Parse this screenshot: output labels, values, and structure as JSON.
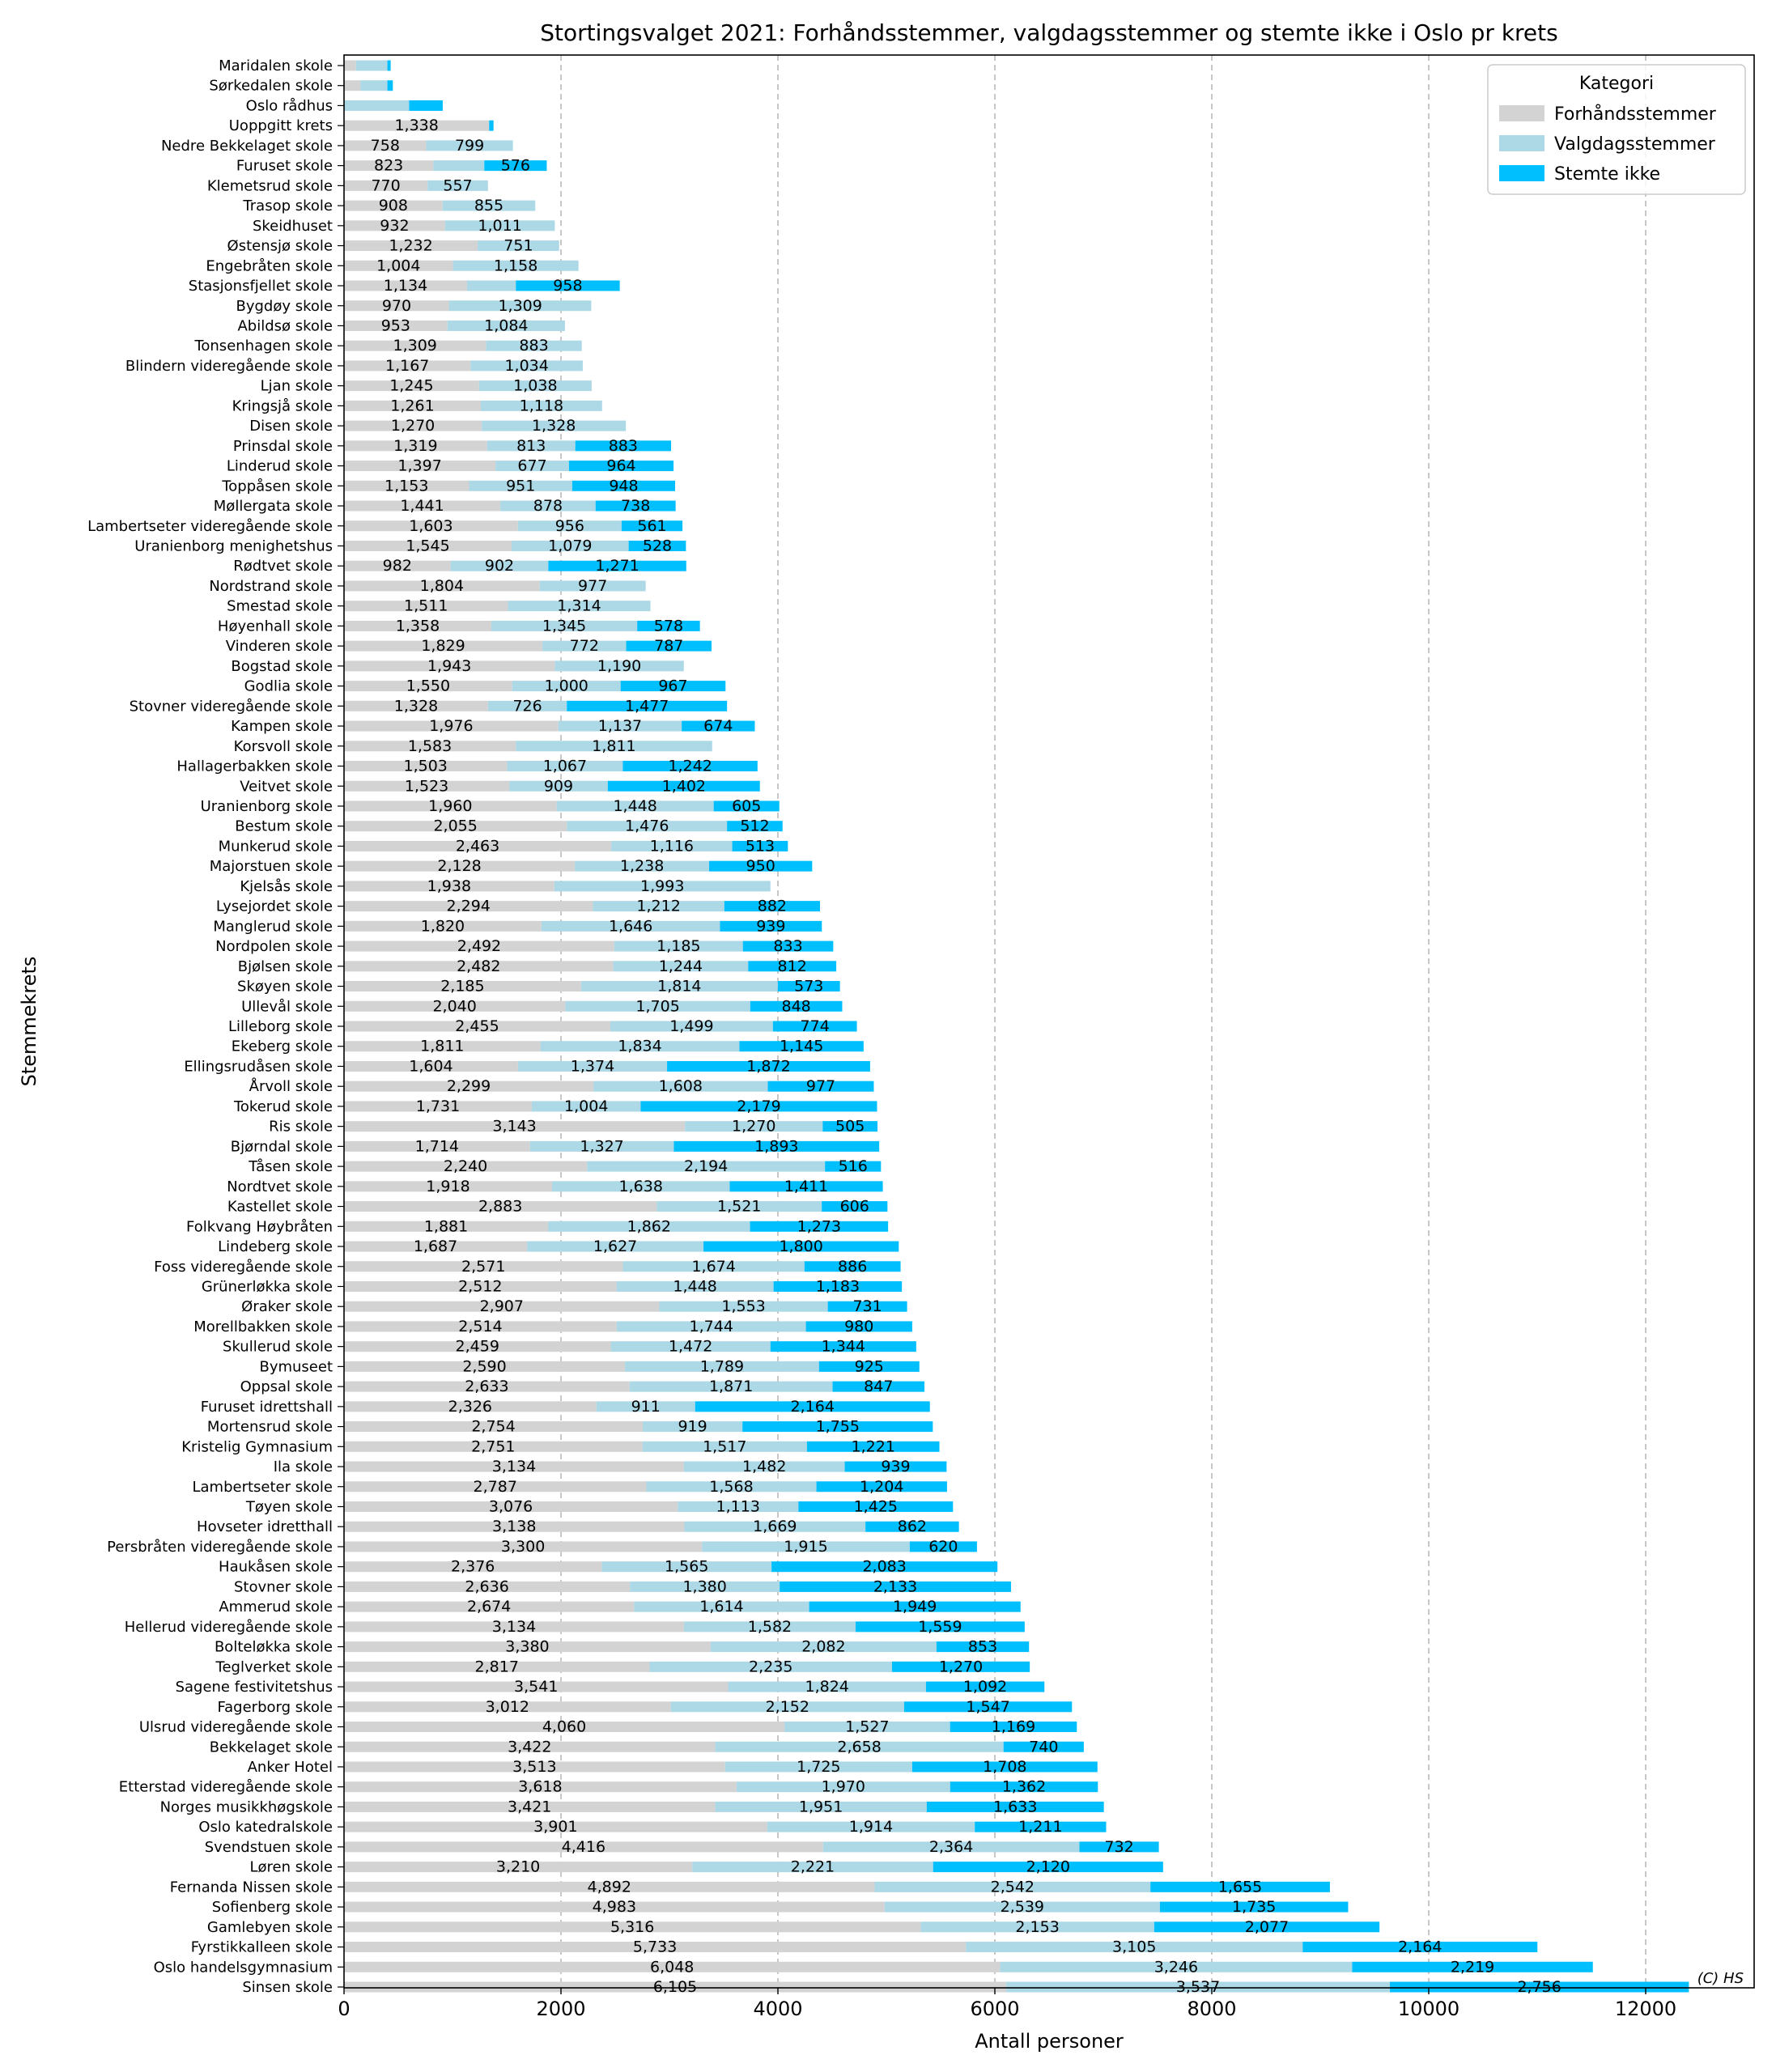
{
  "chart_data": {
    "type": "bar",
    "orientation": "horizontal",
    "stacked": true,
    "title": "Stortingsvalget 2021: Forhåndsstemmer, valgdagsstemmer og stemte ikke i Oslo pr krets",
    "xlabel": "Antall personer",
    "ylabel": "Stemmekrets",
    "xlim": [
      0,
      13000
    ],
    "xticks": [
      0,
      2000,
      4000,
      6000,
      8000,
      10000,
      12000
    ],
    "grid": "x dashed",
    "legend": {
      "title": "Kategori",
      "position": "top-right"
    },
    "credit": "(C) HS",
    "colors": [
      "#d3d3d3",
      "#add8e6",
      "#00bfff"
    ],
    "series": [
      {
        "name": "Forhåndsstemmer",
        "color": "#d3d3d3",
        "values": [
          null,
          null,
          null,
          1338,
          758,
          823,
          770,
          908,
          932,
          1232,
          1004,
          1134,
          970,
          953,
          1309,
          1167,
          1245,
          1261,
          1270,
          1319,
          1397,
          1153,
          1441,
          1603,
          1545,
          982,
          1804,
          1511,
          1358,
          1829,
          1943,
          1550,
          1328,
          1976,
          1583,
          1503,
          1523,
          1960,
          2055,
          2463,
          2128,
          1938,
          2294,
          1820,
          2492,
          2482,
          2185,
          2040,
          2455,
          1811,
          1604,
          2299,
          1731,
          3143,
          1714,
          2240,
          1918,
          2883,
          1881,
          1687,
          2571,
          2512,
          2907,
          2514,
          2459,
          2590,
          2633,
          2326,
          2754,
          2751,
          3134,
          2787,
          3076,
          3138,
          3300,
          2376,
          2636,
          2674,
          3134,
          3380,
          2817,
          3541,
          3012,
          4060,
          3422,
          3513,
          3618,
          3421,
          3901,
          4416,
          3210,
          4892,
          4983,
          5316,
          5733,
          6048,
          6105
        ]
      },
      {
        "name": "Valgdagsstemmer",
        "color": "#add8e6",
        "values": [
          null,
          null,
          null,
          null,
          799,
          null,
          557,
          855,
          1011,
          751,
          1158,
          null,
          1309,
          1084,
          883,
          1034,
          1038,
          1118,
          1328,
          813,
          677,
          951,
          878,
          956,
          1079,
          902,
          977,
          1314,
          1345,
          772,
          1190,
          1000,
          726,
          1137,
          1811,
          1067,
          909,
          1448,
          1476,
          1116,
          1238,
          1993,
          1212,
          1646,
          1185,
          1244,
          1814,
          1705,
          1499,
          1834,
          1374,
          1608,
          1004,
          1270,
          1327,
          2194,
          1638,
          1521,
          1862,
          1627,
          1674,
          1448,
          1553,
          1744,
          1472,
          1789,
          1871,
          911,
          919,
          1517,
          1482,
          1568,
          1113,
          1669,
          1915,
          1565,
          1380,
          1614,
          1582,
          2082,
          2235,
          1824,
          2152,
          1527,
          2658,
          1725,
          1970,
          1951,
          1914,
          2364,
          2221,
          2542,
          2539,
          2153,
          3105,
          3246,
          3537
        ]
      },
      {
        "name": "Stemte ikke",
        "color": "#00bfff",
        "values": [
          null,
          null,
          null,
          null,
          null,
          576,
          null,
          null,
          null,
          null,
          null,
          958,
          null,
          null,
          null,
          null,
          null,
          null,
          null,
          883,
          964,
          948,
          738,
          561,
          528,
          1271,
          null,
          null,
          578,
          787,
          null,
          967,
          1477,
          674,
          null,
          1242,
          1402,
          605,
          512,
          513,
          950,
          null,
          882,
          939,
          833,
          812,
          573,
          848,
          774,
          1145,
          1872,
          977,
          2179,
          505,
          1893,
          516,
          1411,
          606,
          1273,
          1800,
          886,
          1183,
          731,
          980,
          1344,
          925,
          847,
          2164,
          1755,
          1221,
          939,
          1204,
          1425,
          862,
          620,
          2083,
          2133,
          1949,
          1559,
          853,
          1270,
          1092,
          1547,
          1169,
          740,
          1708,
          1362,
          1633,
          1211,
          732,
          2120,
          1655,
          1735,
          2077,
          2164,
          2219,
          2756
        ]
      }
    ],
    "categories": [
      "Maridalen skole",
      "Sørkedalen skole",
      "Oslo rådhus",
      "Uoppgitt krets",
      "Nedre Bekkelaget skole",
      "Furuset skole",
      "Klemetsrud skole",
      "Trasop skole",
      "Skeidhuset",
      "Østensjø skole",
      "Engebråten skole",
      "Stasjonsfjellet skole",
      "Bygdøy skole",
      "Abildsø skole",
      "Tonsenhagen skole",
      "Blindern videregående skole",
      "Ljan skole",
      "Kringsjå skole",
      "Disen skole",
      "Prinsdal skole",
      "Linderud skole",
      "Toppåsen skole",
      "Møllergata skole",
      "Lambertseter videregående skole",
      "Uranienborg menighetshus",
      "Rødtvet skole",
      "Nordstrand skole",
      "Smestad skole",
      "Høyenhall skole",
      "Vinderen skole",
      "Bogstad skole",
      "Godlia skole",
      "Stovner videregående skole",
      "Kampen skole",
      "Korsvoll skole",
      "Hallagerbakken skole",
      "Veitvet skole",
      "Uranienborg skole",
      "Bestum skole",
      "Munkerud skole",
      "Majorstuen skole",
      "Kjelsås skole",
      "Lysejordet skole",
      "Manglerud skole",
      "Nordpolen skole",
      "Bjølsen skole",
      "Skøyen skole",
      "Ullevål skole",
      "Lilleborg skole",
      "Ekeberg skole",
      "Ellingsrudåsen skole",
      "Årvoll skole",
      "Tokerud skole",
      "Ris skole",
      "Bjørndal skole",
      "Tåsen skole",
      "Nordtvet skole",
      "Kastellet skole",
      "Folkvang Høybråten",
      "Lindeberg skole",
      "Foss videregående skole",
      "Grünerløkka skole",
      "Øraker skole",
      "Morellbakken skole",
      "Skullerud skole",
      "Bymuseet",
      "Oppsal skole",
      "Furuset idrettshall",
      "Mortensrud skole",
      "Kristelig Gymnasium",
      "Ila skole",
      "Lambertseter skole",
      "Tøyen skole",
      "Hovseter idretthall",
      "Persbråten videregående skole",
      "Haukåsen skole",
      "Stovner skole",
      "Ammerud skole",
      "Hellerud videregående skole",
      "Bolteløkka skole",
      "Teglverket skole",
      "Sagene festivitetshus",
      "Fagerborg skole",
      "Ulsrud videregående skole",
      "Bekkelaget skole",
      "Anker Hotel",
      "Etterstad videregående skole",
      "Norges musikkhøgskole",
      "Oslo katedralskole",
      "Svendstuen skole",
      "Løren skole",
      "Fernanda Nissen skole",
      "Sofienberg skole",
      "Gamlebyen skole",
      "Fyrstikkalleen skole",
      "Oslo handelsgymnasium",
      "Sinsen skole"
    ],
    "unlabeled_totals": [
      [
        110,
        290,
        30
      ],
      [
        150,
        250,
        50
      ],
      [
        null,
        600,
        310
      ],
      [
        null,
        null,
        40
      ],
      [
        null,
        null,
        null
      ],
      [
        null,
        470,
        null
      ],
      [
        null,
        null,
        null
      ],
      [
        null,
        null,
        null
      ],
      [
        null,
        null,
        null
      ],
      [
        null,
        null,
        null
      ],
      [
        null,
        null,
        null
      ],
      [
        null,
        450,
        null
      ]
    ]
  }
}
